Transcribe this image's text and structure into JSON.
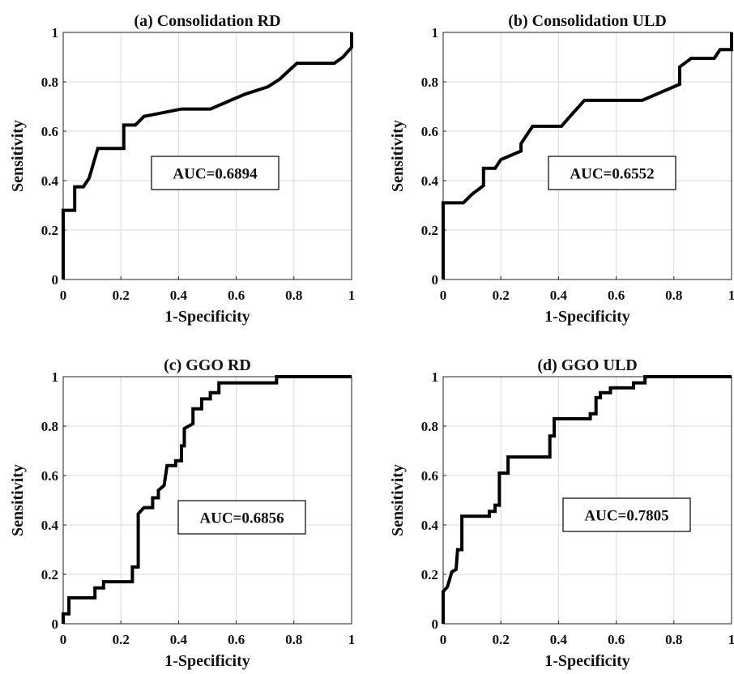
{
  "chart_data": [
    {
      "type": "line",
      "title": "(a) Consolidation RD",
      "xlabel": "1-Specificity",
      "ylabel": "Sensitivity",
      "xlim": [
        0,
        1
      ],
      "ylim": [
        0,
        1
      ],
      "xticks": [
        "0",
        "0.2",
        "0.4",
        "0.6",
        "0.8",
        "1"
      ],
      "yticks": [
        "0",
        "0.2",
        "0.4",
        "0.6",
        "0.8",
        "1"
      ],
      "grid": true,
      "annotation": "AUC=0.6894",
      "points": [
        [
          0,
          0
        ],
        [
          0,
          0.28
        ],
        [
          0.04,
          0.28
        ],
        [
          0.04,
          0.375
        ],
        [
          0.07,
          0.375
        ],
        [
          0.09,
          0.41
        ],
        [
          0.12,
          0.53
        ],
        [
          0.21,
          0.53
        ],
        [
          0.21,
          0.625
        ],
        [
          0.25,
          0.625
        ],
        [
          0.28,
          0.66
        ],
        [
          0.41,
          0.69
        ],
        [
          0.51,
          0.69
        ],
        [
          0.63,
          0.75
        ],
        [
          0.71,
          0.78
        ],
        [
          0.75,
          0.81
        ],
        [
          0.81,
          0.875
        ],
        [
          0.94,
          0.875
        ],
        [
          0.97,
          0.9
        ],
        [
          1,
          0.94
        ],
        [
          1,
          1
        ]
      ]
    },
    {
      "type": "line",
      "title": "(b) Consolidation ULD",
      "xlabel": "1-Specificity",
      "ylabel": "Sensitivity",
      "xlim": [
        0,
        1
      ],
      "ylim": [
        0,
        1
      ],
      "xticks": [
        "0",
        "0.2",
        "0.4",
        "0.6",
        "0.8",
        "1"
      ],
      "yticks": [
        "0",
        "0.2",
        "0.4",
        "0.6",
        "0.8",
        "1"
      ],
      "grid": true,
      "annotation": "AUC=0.6552",
      "points": [
        [
          0,
          0
        ],
        [
          0,
          0.31
        ],
        [
          0.07,
          0.31
        ],
        [
          0.1,
          0.345
        ],
        [
          0.14,
          0.38
        ],
        [
          0.14,
          0.45
        ],
        [
          0.18,
          0.45
        ],
        [
          0.2,
          0.485
        ],
        [
          0.23,
          0.5
        ],
        [
          0.27,
          0.52
        ],
        [
          0.27,
          0.55
        ],
        [
          0.31,
          0.62
        ],
        [
          0.41,
          0.62
        ],
        [
          0.44,
          0.66
        ],
        [
          0.49,
          0.725
        ],
        [
          0.69,
          0.725
        ],
        [
          0.82,
          0.79
        ],
        [
          0.82,
          0.86
        ],
        [
          0.86,
          0.895
        ],
        [
          0.94,
          0.895
        ],
        [
          0.96,
          0.93
        ],
        [
          1,
          0.93
        ],
        [
          1,
          1
        ]
      ]
    },
    {
      "type": "line",
      "title": "(c) GGO RD",
      "xlabel": "1-Specificity",
      "ylabel": "Sensitivity",
      "xlim": [
        0,
        1
      ],
      "ylim": [
        0,
        1
      ],
      "xticks": [
        "0",
        "0.2",
        "0.4",
        "0.6",
        "0.8",
        "1"
      ],
      "yticks": [
        "0",
        "0.2",
        "0.4",
        "0.6",
        "0.8",
        "1"
      ],
      "grid": true,
      "annotation": "AUC=0.6856",
      "points": [
        [
          0,
          0
        ],
        [
          0,
          0.04
        ],
        [
          0.02,
          0.04
        ],
        [
          0.02,
          0.105
        ],
        [
          0.11,
          0.105
        ],
        [
          0.11,
          0.145
        ],
        [
          0.14,
          0.145
        ],
        [
          0.14,
          0.17
        ],
        [
          0.24,
          0.17
        ],
        [
          0.24,
          0.23
        ],
        [
          0.26,
          0.23
        ],
        [
          0.26,
          0.445
        ],
        [
          0.28,
          0.47
        ],
        [
          0.31,
          0.47
        ],
        [
          0.31,
          0.51
        ],
        [
          0.33,
          0.51
        ],
        [
          0.33,
          0.54
        ],
        [
          0.35,
          0.56
        ],
        [
          0.36,
          0.64
        ],
        [
          0.39,
          0.64
        ],
        [
          0.39,
          0.66
        ],
        [
          0.41,
          0.66
        ],
        [
          0.41,
          0.72
        ],
        [
          0.42,
          0.72
        ],
        [
          0.42,
          0.79
        ],
        [
          0.45,
          0.81
        ],
        [
          0.45,
          0.87
        ],
        [
          0.48,
          0.87
        ],
        [
          0.48,
          0.91
        ],
        [
          0.51,
          0.91
        ],
        [
          0.51,
          0.935
        ],
        [
          0.54,
          0.935
        ],
        [
          0.54,
          0.975
        ],
        [
          0.74,
          0.975
        ],
        [
          0.74,
          1
        ],
        [
          1,
          1
        ]
      ]
    },
    {
      "type": "line",
      "title": "(d) GGO ULD",
      "xlabel": "1-Specificity",
      "ylabel": "Sensitivity",
      "xlim": [
        0,
        1
      ],
      "ylim": [
        0,
        1
      ],
      "xticks": [
        "0",
        "0.2",
        "0.4",
        "0.6",
        "0.8",
        "1"
      ],
      "yticks": [
        "0",
        "0.2",
        "0.4",
        "0.6",
        "0.8",
        "1"
      ],
      "grid": true,
      "annotation": "AUC=0.7805",
      "points": [
        [
          0,
          0
        ],
        [
          0,
          0.13
        ],
        [
          0.015,
          0.15
        ],
        [
          0.03,
          0.21
        ],
        [
          0.045,
          0.22
        ],
        [
          0.05,
          0.3
        ],
        [
          0.065,
          0.3
        ],
        [
          0.065,
          0.435
        ],
        [
          0.16,
          0.435
        ],
        [
          0.16,
          0.455
        ],
        [
          0.18,
          0.455
        ],
        [
          0.18,
          0.48
        ],
        [
          0.195,
          0.48
        ],
        [
          0.195,
          0.61
        ],
        [
          0.225,
          0.61
        ],
        [
          0.225,
          0.675
        ],
        [
          0.37,
          0.675
        ],
        [
          0.37,
          0.76
        ],
        [
          0.385,
          0.76
        ],
        [
          0.385,
          0.83
        ],
        [
          0.51,
          0.83
        ],
        [
          0.51,
          0.85
        ],
        [
          0.53,
          0.85
        ],
        [
          0.53,
          0.915
        ],
        [
          0.545,
          0.915
        ],
        [
          0.545,
          0.935
        ],
        [
          0.58,
          0.935
        ],
        [
          0.58,
          0.955
        ],
        [
          0.66,
          0.955
        ],
        [
          0.66,
          0.975
        ],
        [
          0.7,
          0.975
        ],
        [
          0.7,
          1
        ],
        [
          1,
          1
        ]
      ]
    }
  ]
}
